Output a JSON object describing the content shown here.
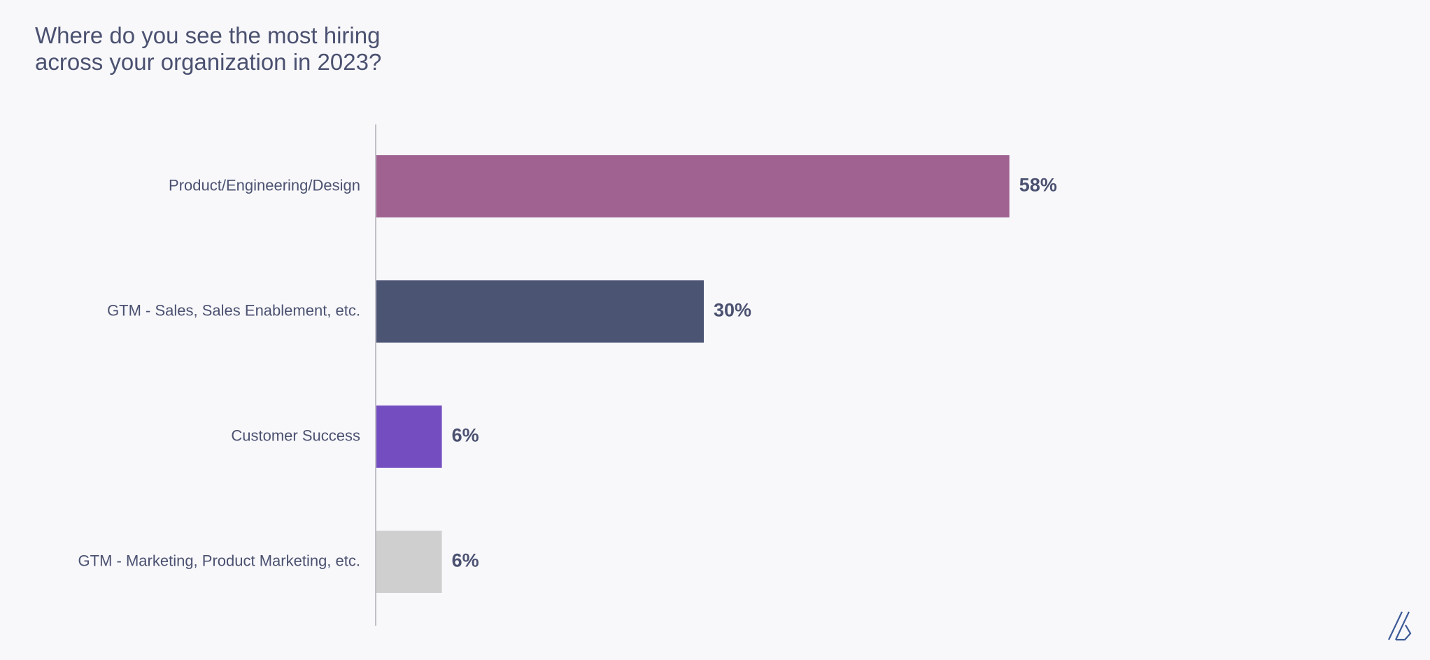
{
  "title": {
    "line1": "Where do you see the most hiring",
    "line2": "across your organization in 2023?"
  },
  "chart_data": {
    "type": "bar",
    "orientation": "horizontal",
    "categories": [
      "Product/Engineering/Design",
      "GTM - Sales, Sales Enablement, etc.",
      "Customer Success",
      "GTM - Marketing, Product Marketing, etc."
    ],
    "values": [
      58,
      30,
      6,
      6
    ],
    "value_labels": [
      "58%",
      "30%",
      "6%",
      "6%"
    ],
    "colors": [
      "#a06391",
      "#4c5474",
      "#744ec0",
      "#cfcfcf"
    ],
    "unit": "%",
    "xlim": [
      0,
      100
    ],
    "grid": false,
    "legend": "none"
  },
  "colors": {
    "background": "#f8f8fb",
    "text": "#4b5170",
    "axis": "#bfbfc8",
    "logo": "#3c5a96"
  },
  "logo": {
    "icon": "company-logo-icon"
  }
}
